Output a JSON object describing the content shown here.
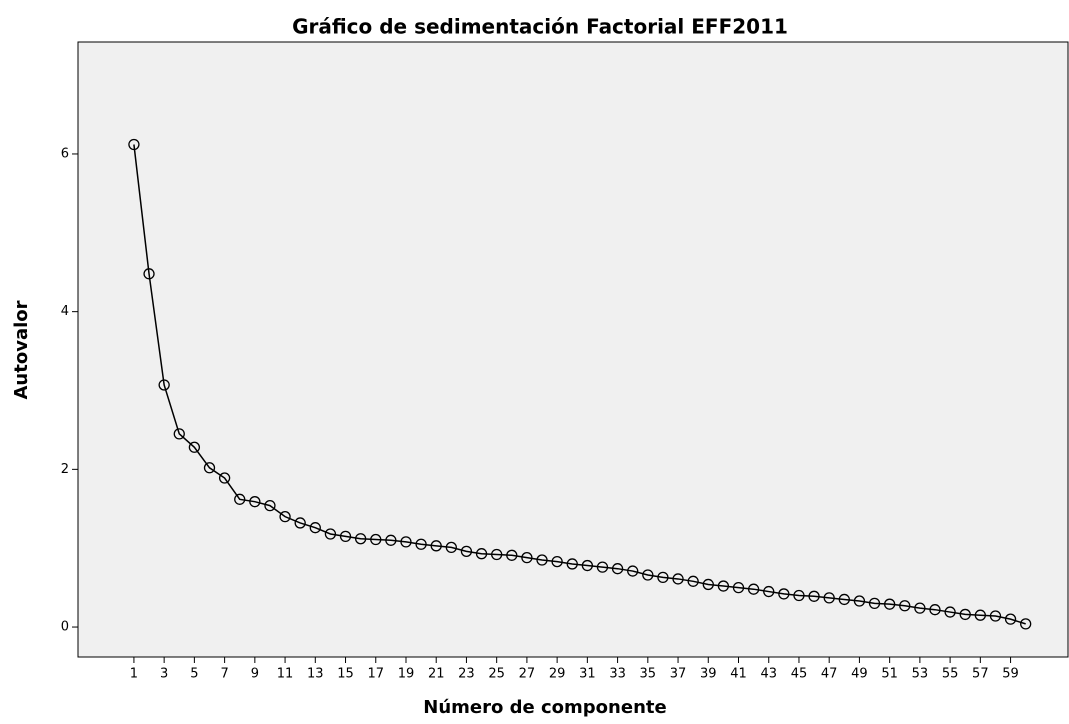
{
  "chart_data": {
    "type": "line",
    "title": "Gráfico de sedimentación Factorial EFF2011",
    "xlabel": "Número de componente",
    "ylabel": "Autovalor",
    "x": [
      1,
      2,
      3,
      4,
      5,
      6,
      7,
      8,
      9,
      10,
      11,
      12,
      13,
      14,
      15,
      16,
      17,
      18,
      19,
      20,
      21,
      22,
      23,
      24,
      25,
      26,
      27,
      28,
      29,
      30,
      31,
      32,
      33,
      34,
      35,
      36,
      37,
      38,
      39,
      40,
      41,
      42,
      43,
      44,
      45,
      46,
      47,
      48,
      49,
      50,
      51,
      52,
      53,
      54,
      55,
      56,
      57,
      58,
      59,
      60
    ],
    "series": [
      {
        "name": "Autovalor",
        "color": "#000000",
        "values": [
          6.12,
          4.48,
          3.07,
          2.45,
          2.28,
          2.02,
          1.89,
          1.62,
          1.59,
          1.54,
          1.4,
          1.32,
          1.26,
          1.18,
          1.15,
          1.12,
          1.11,
          1.1,
          1.08,
          1.05,
          1.03,
          1.01,
          0.96,
          0.93,
          0.92,
          0.91,
          0.88,
          0.85,
          0.83,
          0.8,
          0.78,
          0.76,
          0.74,
          0.71,
          0.66,
          0.63,
          0.61,
          0.58,
          0.54,
          0.52,
          0.5,
          0.48,
          0.45,
          0.42,
          0.4,
          0.39,
          0.37,
          0.35,
          0.33,
          0.3,
          0.29,
          0.27,
          0.24,
          0.22,
          0.19,
          0.16,
          0.15,
          0.14,
          0.1,
          0.04
        ]
      }
    ],
    "xlim": [
      -2.7,
      62.8
    ],
    "xticks": [
      1,
      3,
      5,
      7,
      9,
      11,
      13,
      15,
      17,
      19,
      21,
      23,
      25,
      27,
      29,
      31,
      33,
      35,
      37,
      39,
      41,
      43,
      45,
      47,
      49,
      51,
      53,
      55,
      57,
      59
    ],
    "ylim": [
      -0.38,
      7.42
    ],
    "yticks": [
      0,
      2,
      4,
      6
    ],
    "grid": false,
    "background": "#f0f0f0"
  }
}
